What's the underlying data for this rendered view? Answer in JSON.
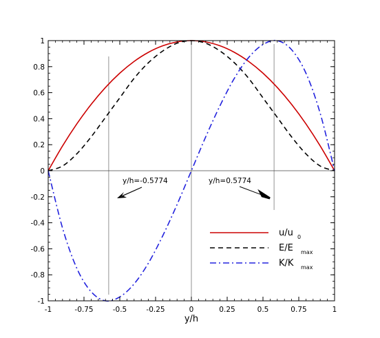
{
  "chart_data": {
    "type": "line",
    "xlabel": "y/h",
    "ylabel": "",
    "xlim": [
      -1,
      1
    ],
    "ylim": [
      -1,
      1
    ],
    "xticks": [
      -1,
      -0.75,
      -0.5,
      -0.25,
      0,
      0.25,
      0.5,
      0.75,
      1
    ],
    "xtick_labels": [
      "-1",
      "-0.75",
      "-0.5",
      "-0.25",
      "0",
      "0.25",
      "0.5",
      "0.75",
      "1"
    ],
    "yticks": [
      -1,
      -0.8,
      -0.6,
      -0.4,
      -0.2,
      0,
      0.2,
      0.4,
      0.6,
      0.8,
      1
    ],
    "ytick_labels": [
      "-1",
      "-0.8",
      "-0.6",
      "-0.4",
      "-0.2",
      "0",
      "0.2",
      "0.4",
      "0.6",
      "0.8",
      "1"
    ],
    "grid": false,
    "legend_position": "lower-right",
    "reference_lines": {
      "vertical_x": [
        -0.5774,
        0,
        0.5774
      ],
      "horizontal_y": [
        0
      ]
    },
    "annotations": [
      {
        "text": "y/h=-0.5774",
        "target": {
          "x": -0.5774,
          "y": -0.2
        }
      },
      {
        "text": "y/h=0.5774",
        "target": {
          "x": 0.5774,
          "y": -0.2
        }
      }
    ],
    "series": [
      {
        "key": "u",
        "legend_main": "u/u",
        "legend_sub": "0",
        "color": "#cc0000",
        "dash": "solid",
        "x": [
          -1,
          -0.9,
          -0.8,
          -0.7,
          -0.6,
          -0.5,
          -0.4,
          -0.3,
          -0.2,
          -0.1,
          0,
          0.1,
          0.2,
          0.3,
          0.4,
          0.5,
          0.6,
          0.7,
          0.8,
          0.9,
          1
        ],
        "y": [
          0,
          0.19,
          0.36,
          0.51,
          0.64,
          0.75,
          0.84,
          0.91,
          0.96,
          0.99,
          1,
          0.99,
          0.96,
          0.91,
          0.84,
          0.75,
          0.64,
          0.51,
          0.36,
          0.19,
          0
        ]
      },
      {
        "key": "E",
        "legend_main": "E/E",
        "legend_sub": "max",
        "color": "#000000",
        "dash": "dashed",
        "x": [
          -1,
          -0.9,
          -0.8,
          -0.7,
          -0.6,
          -0.5,
          -0.4,
          -0.3,
          -0.2,
          -0.1,
          0,
          0.1,
          0.2,
          0.3,
          0.4,
          0.5,
          0.6,
          0.7,
          0.8,
          0.9,
          1
        ],
        "y": [
          0,
          0.036,
          0.13,
          0.26,
          0.41,
          0.56,
          0.71,
          0.83,
          0.92,
          0.98,
          1,
          0.98,
          0.92,
          0.83,
          0.71,
          0.56,
          0.41,
          0.26,
          0.13,
          0.036,
          0
        ]
      },
      {
        "key": "K",
        "legend_main": "K/K",
        "legend_sub": "max",
        "color": "#2222dd",
        "dash": "dashdot",
        "x": [
          -1,
          -0.9,
          -0.8,
          -0.7,
          -0.6,
          -0.5,
          -0.4,
          -0.3,
          -0.2,
          -0.1,
          0,
          0.1,
          0.2,
          0.3,
          0.4,
          0.5,
          0.6,
          0.7,
          0.8,
          0.9,
          1
        ],
        "y": [
          0,
          -0.44,
          -0.75,
          -0.93,
          -1.0,
          -0.97,
          -0.87,
          -0.71,
          -0.5,
          -0.26,
          0,
          0.26,
          0.5,
          0.71,
          0.87,
          0.97,
          1.0,
          0.93,
          0.75,
          0.44,
          0
        ]
      }
    ]
  }
}
